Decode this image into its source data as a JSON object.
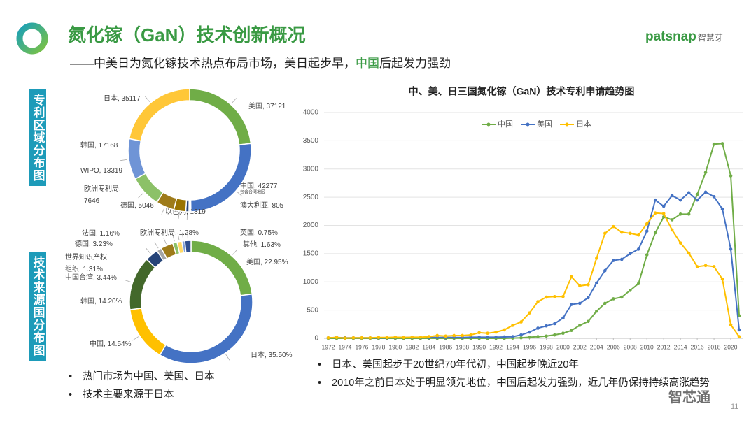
{
  "header": {
    "title": "氮化镓（GaN）技术创新概况",
    "subtitle": [
      "——中美日为氮化镓技术热点布局市场，美日起步早，",
      "中国",
      "后起发力强劲"
    ],
    "brand": "patsnap",
    "brand_cn": "智慧芽"
  },
  "side_labels": [
    "专利区域分布图",
    "技术来源国分布图"
  ],
  "bullets_left": [
    "热门市场为中国、美国、日本",
    "技术主要来源于日本"
  ],
  "bullets_right": [
    "日本、美国起步于20世纪70年代初，中国起步晚近20年",
    "2010年之前日本处于明显领先地位，中国后起发力强劲，近几年仍保持持续高涨趋势"
  ],
  "watermark": "智芯通",
  "page_number": "11",
  "chart_data": [
    {
      "type": "donut",
      "categories": [
        "美国, 37121",
        "中国, 42277",
        "澳大利亚, 805",
        "以色列, 1319",
        "德国, 5046",
        "欧洲专利局,\n7646",
        "WIPO, 13319",
        "韩国, 17168",
        "日本, 35117"
      ],
      "values": [
        37121,
        42277,
        805,
        1319,
        5046,
        7646,
        13319,
        17168,
        35117
      ],
      "colors": [
        "#70ad47",
        "#4472c4",
        "#a5a5a5",
        "#264478",
        "#997300",
        "#9e7b1a",
        "#8cc168",
        "#6f94d6",
        "#ffc738"
      ],
      "note": "包含台湾地区"
    },
    {
      "type": "donut",
      "categories": [
        "美国, 22.95%",
        "日本, 35.50%",
        "中国, 14.54%",
        "韩国, 14.20%",
        "中国台湾, 3.44%",
        "世界知识产权\n组织, 1.31%",
        "德国, 3.23%",
        "法国, 1.16%",
        "欧洲专利局, 1.28%",
        "英国, 0.75%",
        "其他, 1.63%"
      ],
      "values": [
        22.95,
        35.5,
        14.54,
        14.2,
        3.44,
        1.31,
        3.23,
        1.16,
        1.28,
        0.75,
        1.63
      ],
      "colors": [
        "#70ad47",
        "#4472c4",
        "#ffc000",
        "#43682b",
        "#264478",
        "#a5a5a5",
        "#9e7b1a",
        "#8cc168",
        "#ffd966",
        "#7f9fd8",
        "#2f4f8f"
      ]
    },
    {
      "type": "line",
      "title": "中、美、日三国氮化镓（GaN）技术专利申请趋势图",
      "x": [
        1972,
        1973,
        1974,
        1975,
        1976,
        1977,
        1978,
        1979,
        1980,
        1981,
        1982,
        1983,
        1984,
        1985,
        1986,
        1987,
        1988,
        1989,
        1990,
        1991,
        1992,
        1993,
        1994,
        1995,
        1996,
        1997,
        1998,
        1999,
        2000,
        2001,
        2002,
        2003,
        2004,
        2005,
        2006,
        2007,
        2008,
        2009,
        2010,
        2011,
        2012,
        2013,
        2014,
        2015,
        2016,
        2017,
        2018,
        2019,
        2020,
        2021
      ],
      "series": [
        {
          "name": "中国",
          "color": "#70ad47",
          "values": [
            0,
            0,
            0,
            0,
            0,
            0,
            0,
            0,
            0,
            0,
            0,
            0,
            0,
            0,
            0,
            0,
            0,
            0,
            0,
            0,
            0,
            0,
            5,
            10,
            20,
            30,
            40,
            60,
            90,
            140,
            230,
            300,
            480,
            620,
            700,
            730,
            850,
            970,
            1480,
            1870,
            2150,
            2100,
            2200,
            2200,
            2550,
            2940,
            3440,
            3450,
            2880,
            400
          ]
        },
        {
          "name": "美国",
          "color": "#4472c4",
          "values": [
            10,
            15,
            10,
            10,
            10,
            10,
            10,
            10,
            15,
            15,
            15,
            15,
            15,
            15,
            15,
            15,
            15,
            20,
            20,
            20,
            20,
            25,
            30,
            60,
            110,
            180,
            220,
            260,
            360,
            600,
            620,
            720,
            980,
            1200,
            1380,
            1400,
            1500,
            1580,
            1900,
            2450,
            2340,
            2530,
            2450,
            2580,
            2450,
            2590,
            2510,
            2290,
            1580,
            150
          ]
        },
        {
          "name": "日本",
          "color": "#ffc000",
          "values": [
            10,
            15,
            5,
            10,
            10,
            10,
            15,
            15,
            20,
            15,
            20,
            20,
            30,
            50,
            40,
            50,
            50,
            60,
            100,
            90,
            110,
            150,
            230,
            290,
            450,
            650,
            730,
            740,
            740,
            1090,
            930,
            950,
            1420,
            1860,
            1980,
            1880,
            1860,
            1830,
            2030,
            2220,
            2210,
            1920,
            1690,
            1510,
            1270,
            1290,
            1270,
            1050,
            240,
            30
          ]
        }
      ],
      "xlim": [
        1971.5,
        2021.5
      ],
      "xticks": [
        1972,
        1974,
        1976,
        1978,
        1980,
        1982,
        1984,
        1986,
        1988,
        1990,
        1992,
        1994,
        1996,
        1998,
        2000,
        2002,
        2004,
        2006,
        2008,
        2010,
        2012,
        2014,
        2016,
        2018,
        2020
      ],
      "ylim": [
        0,
        4000
      ],
      "yticks": [
        0,
        500,
        1000,
        1500,
        2000,
        2500,
        3000,
        3500,
        4000
      ],
      "grid": true,
      "legend": "top"
    }
  ]
}
